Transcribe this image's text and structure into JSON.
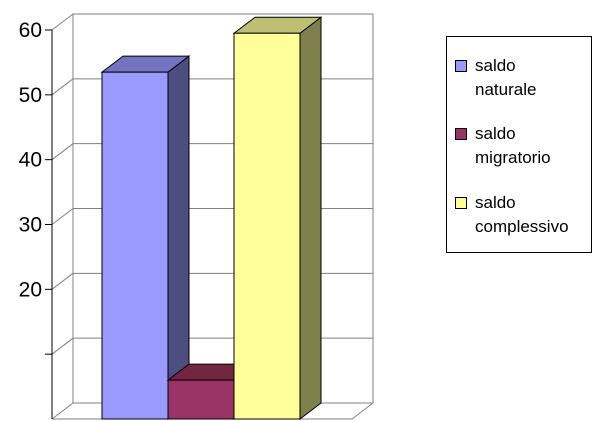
{
  "chart_data": {
    "type": "bar",
    "categories": [
      "saldo naturale",
      "saldo migratorio",
      "saldo complessivo"
    ],
    "values": [
      53.5,
      6,
      59.5
    ],
    "colors": [
      "#9999ff",
      "#993366",
      "#ffff99"
    ],
    "side_colors": [
      "#4d4d80",
      "#4d1a33",
      "#80804d"
    ],
    "top_colors": [
      "#7373bf",
      "#732640",
      "#bfbf73"
    ],
    "ylim": [
      0,
      60
    ],
    "y_ticks": [
      10,
      20,
      30,
      40,
      50,
      60
    ],
    "y_tick_labels": [
      "",
      "20",
      "30",
      "40",
      "50",
      "60"
    ],
    "grid": true,
    "legend_position": "right",
    "legend_entries": [
      {
        "line1": "saldo",
        "line2": "naturale"
      },
      {
        "line1": "saldo",
        "line2": "migratorio"
      },
      {
        "line1": "saldo",
        "line2": "complessivo"
      }
    ]
  }
}
